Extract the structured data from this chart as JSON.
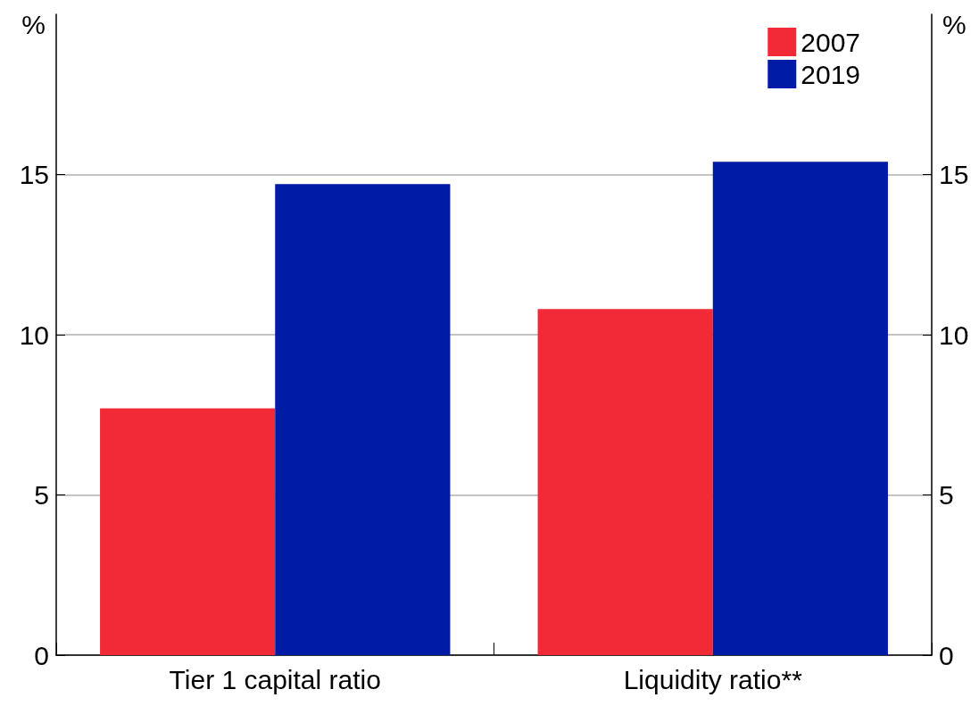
{
  "chart_data": {
    "type": "bar",
    "categories": [
      "Tier 1 capital ratio",
      "Liquidity ratio**"
    ],
    "series": [
      {
        "name": "2007",
        "color": "#f22a38",
        "values": [
          7.7,
          10.8
        ]
      },
      {
        "name": "2019",
        "color": "#001ba6",
        "values": [
          14.7,
          15.4
        ]
      }
    ],
    "ylabel": "%",
    "y2label": "%",
    "ylim": [
      0,
      20
    ],
    "yticks": [
      0,
      5,
      10,
      15
    ],
    "y2lim": [
      0,
      20
    ],
    "y2ticks": [
      0,
      5,
      10,
      15
    ],
    "grid": "y",
    "legend": "top right"
  }
}
